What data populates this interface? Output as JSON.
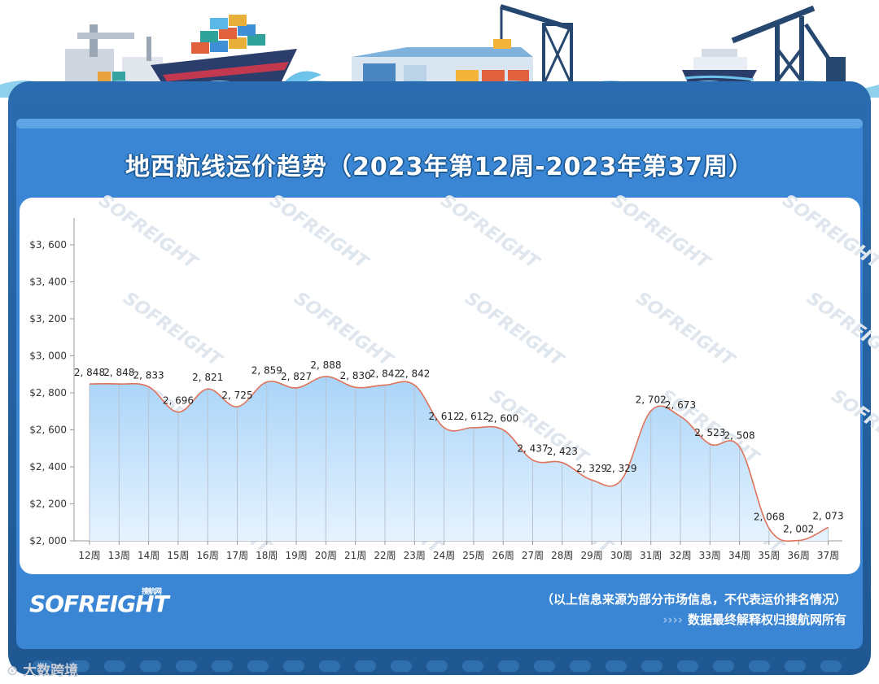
{
  "title": "地西航线运价趋势（2023年第12周-2023年第37周）",
  "brand": {
    "logo_text": "SOFREIGHT",
    "logo_cn": "搜航网",
    "watermark": "SOFREIGHT"
  },
  "footer": {
    "note1": "（以上信息来源为部分市场信息，不代表运价排名情况）",
    "note2_arrows": "››››",
    "note2": "数据最终解释权归搜航网所有"
  },
  "corner_watermark": "大数跨境",
  "colors": {
    "frame": "#1f5791",
    "panel": "#3a86d4",
    "plot_bg": "#ffffff",
    "line": "#e0735a",
    "area_top": "#a9d4f8",
    "area_bottom": "#ddeeff",
    "text": "#333333"
  },
  "chart_data": {
    "type": "area",
    "title": "地西航线运价趋势（2023年第12周-2023年第37周）",
    "categories": [
      "12周",
      "13周",
      "14周",
      "15周",
      "16周",
      "17周",
      "18周",
      "19周",
      "20周",
      "21周",
      "22周",
      "23周",
      "24周",
      "25周",
      "26周",
      "27周",
      "28周",
      "29周",
      "30周",
      "31周",
      "32周",
      "33周",
      "34周",
      "35周",
      "36周",
      "37周"
    ],
    "values": [
      2848,
      2848,
      2833,
      2696,
      2821,
      2725,
      2859,
      2827,
      2888,
      2830,
      2842,
      2842,
      2612,
      2612,
      2600,
      2437,
      2423,
      2329,
      2329,
      2702,
      2673,
      2523,
      2508,
      2068,
      2002,
      2073
    ],
    "value_labels": [
      "2, 848",
      "2, 848",
      "2, 833",
      "2, 696",
      "2, 821",
      "2, 725",
      "2, 859",
      "2, 827",
      "2, 888",
      "2, 830",
      "2, 842",
      "2, 842",
      "2, 612",
      "2, 612",
      "2, 600",
      "2, 437",
      "2, 423",
      "2, 329",
      "2, 329",
      "2, 702",
      "2, 673",
      "2, 523",
      "2, 508",
      "2, 068",
      "2, 002",
      "2, 073"
    ],
    "y_ticks": [
      2000,
      2200,
      2400,
      2600,
      2800,
      3000,
      3200,
      3400,
      3600
    ],
    "y_tick_labels": [
      "$2, 000",
      "$2, 200",
      "$2, 400",
      "$2, 600",
      "$2, 800",
      "$3, 000",
      "$3, 200",
      "$3, 400",
      "$3, 600"
    ],
    "ylim": [
      2000,
      3600
    ],
    "xlabel": "",
    "ylabel": "",
    "grid": false
  }
}
